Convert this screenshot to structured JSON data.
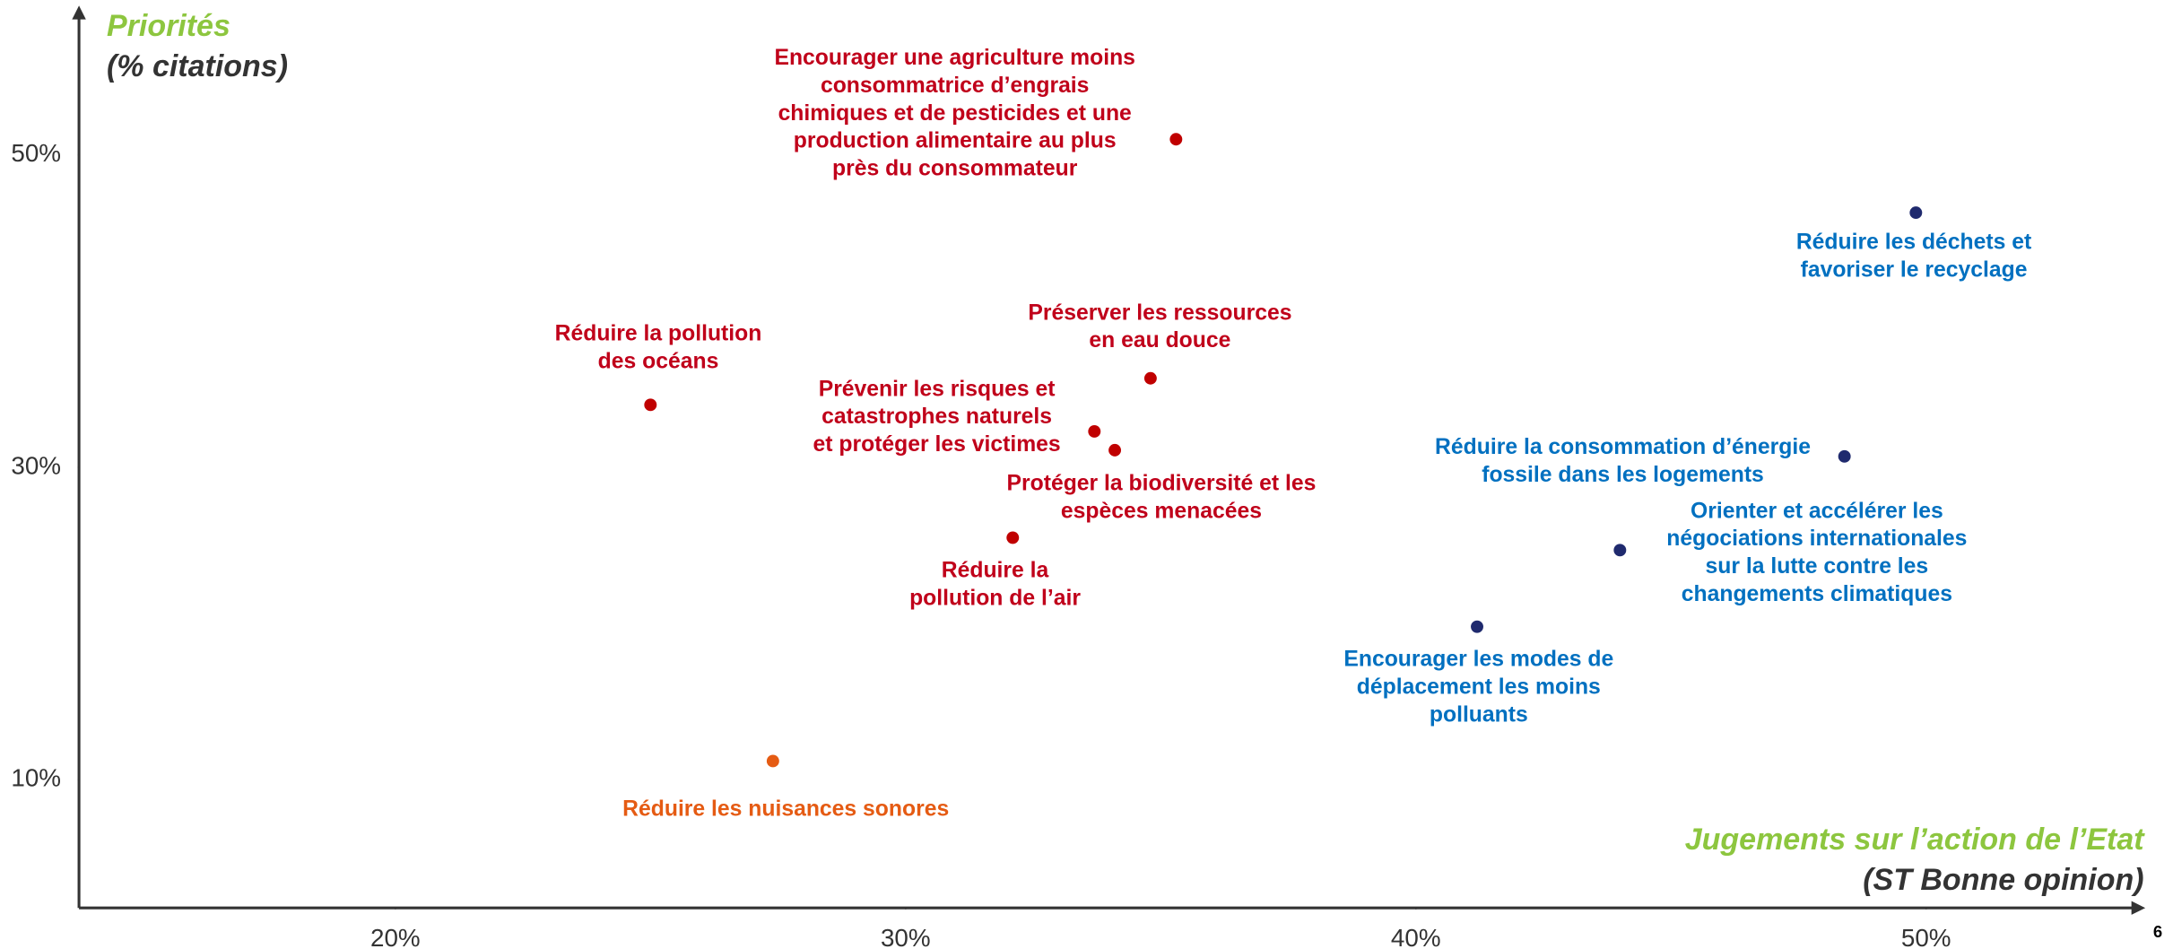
{
  "chart_data": {
    "type": "scatter",
    "y_label": "Priorités",
    "y_sublabel": "(% citations)",
    "x_label": "Jugements sur l’action de l’Etat",
    "x_sublabel": "(ST Bonne opinion)",
    "page_number": "6",
    "axis_label_color": "#8dc63f",
    "axis_sublabel_color": "#333333",
    "xlim": [
      13.8,
      54.1
    ],
    "ylim": [
      1.8,
      59.2
    ],
    "xticks": [
      {
        "value": 20,
        "label": "20%"
      },
      {
        "value": 30,
        "label": "30%"
      },
      {
        "value": 40,
        "label": "40%"
      },
      {
        "value": 50,
        "label": "50%"
      }
    ],
    "yticks": [
      {
        "value": 10,
        "label": "10%"
      },
      {
        "value": 30,
        "label": "30%"
      },
      {
        "value": 50,
        "label": "50%"
      }
    ],
    "grid": false,
    "series": [
      {
        "color": "#c00000",
        "label_color": "#c0001a",
        "x": [
          35.3,
          34.8,
          25.0,
          33.7,
          34.1,
          32.1
        ],
        "values": [
          51.0,
          35.7,
          34.0,
          32.3,
          31.1,
          25.5
        ],
        "labels": [
          "Encourager une agriculture moins\nconsommatrice d’engrais\nchimiques et de pesticides et une\nproduction alimentaire au plus\nprès du consommateur",
          "Préserver les ressources\nen eau douce",
          "Réduire la pollution\ndes océans",
          "Prévenir les risques et\ncatastrophes naturels\net protéger les victimes",
          "Protéger la biodiversité et les\nespèces menacées",
          "Réduire la\npollution de l’air"
        ]
      },
      {
        "color": "#1f2a6e",
        "label_color": "#0070c0",
        "x": [
          49.8,
          48.4,
          44.0,
          41.2
        ],
        "values": [
          46.3,
          30.7,
          24.7,
          19.8
        ],
        "labels": [
          "Réduire les déchets et\nfavoriser le recyclage",
          "Réduire la consommation d’énergie\nfossile dans les logements",
          "Orienter et accélérer les\nnégociations internationales\nsur la lutte contre les\nchangements climatiques",
          "Encourager les modes de\ndéplacement les moins\npolluants"
        ]
      },
      {
        "color": "#e55b13",
        "label_color": "#e55b13",
        "x": [
          27.4
        ],
        "values": [
          11.2
        ],
        "labels": [
          "Réduire les nuisances sonores"
        ]
      }
    ]
  }
}
